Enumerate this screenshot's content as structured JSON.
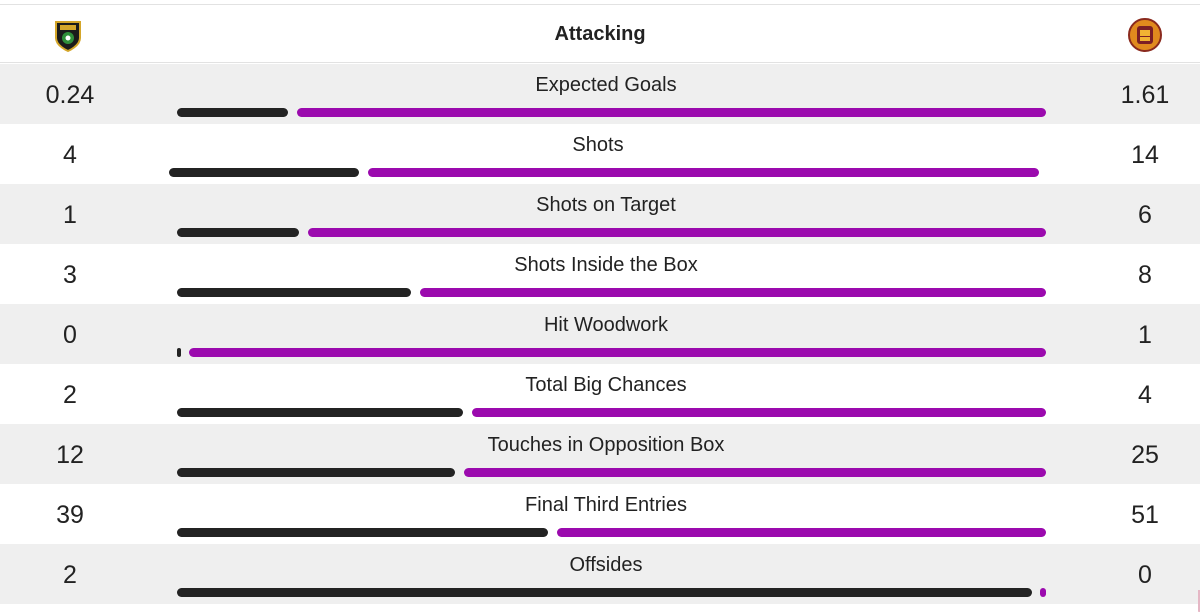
{
  "header": {
    "title": "Attacking",
    "home_crest_icon": "livingston-crest-icon",
    "away_crest_icon": "motherwell-crest-icon"
  },
  "colors": {
    "home_bar": "#232323",
    "away_bar": "#9b0aae",
    "row_shade": "#efefef"
  },
  "stats": [
    {
      "label": "Expected Goals",
      "home": "0.24",
      "away": "1.61",
      "home_share": 0.13
    },
    {
      "label": "Shots",
      "home": "4",
      "away": "14",
      "home_share": 0.22
    },
    {
      "label": "Shots on Target",
      "home": "1",
      "away": "6",
      "home_share": 0.14
    },
    {
      "label": "Shots Inside the Box",
      "home": "3",
      "away": "8",
      "home_share": 0.27
    },
    {
      "label": "Hit Woodwork",
      "home": "0",
      "away": "1",
      "home_share": 0.0
    },
    {
      "label": "Total Big Chances",
      "home": "2",
      "away": "4",
      "home_share": 0.33
    },
    {
      "label": "Touches in Opposition Box",
      "home": "12",
      "away": "25",
      "home_share": 0.32
    },
    {
      "label": "Final Third Entries",
      "home": "39",
      "away": "51",
      "home_share": 0.43
    },
    {
      "label": "Offsides",
      "home": "2",
      "away": "0",
      "home_share": 1.0
    }
  ]
}
